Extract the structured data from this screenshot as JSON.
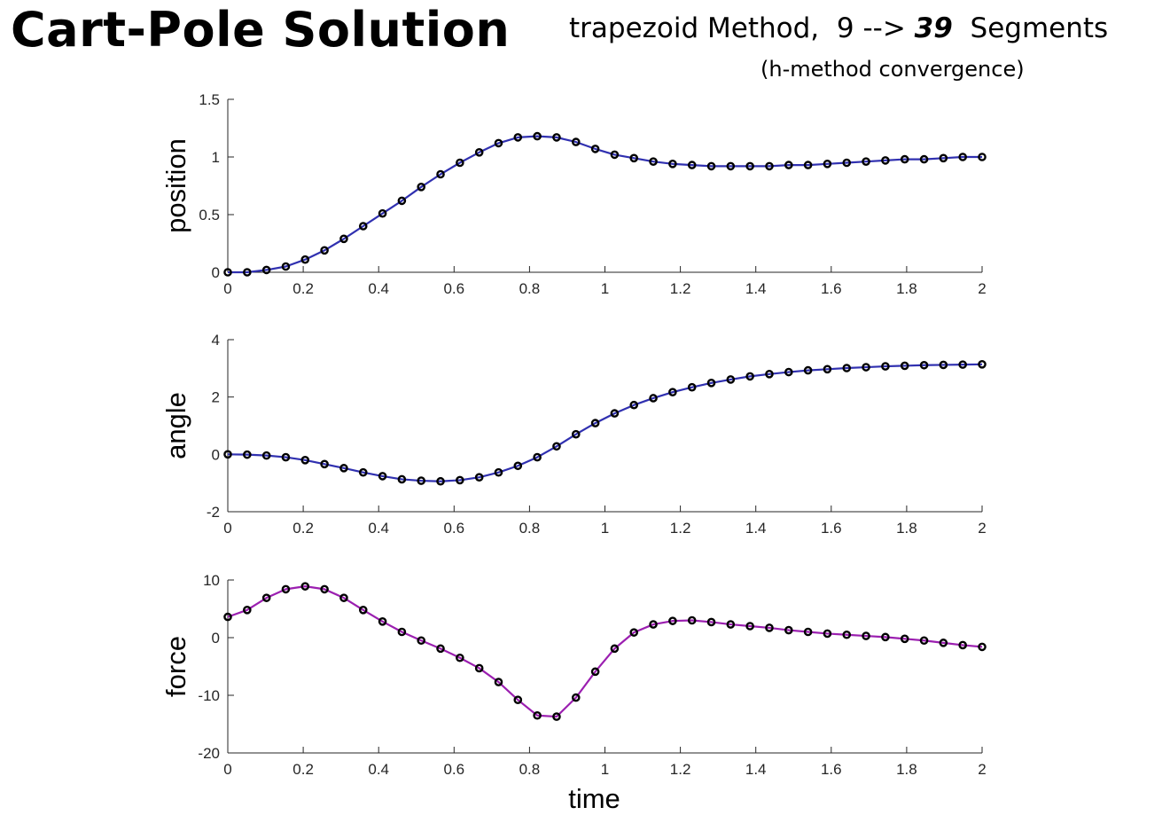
{
  "header": {
    "title": "Cart-Pole Solution",
    "method": "trapezoid Method,",
    "segments_from": "9 -->",
    "segments_to": "39",
    "segments_word": "Segments",
    "note": "(h-method convergence)"
  },
  "colors": {
    "state_line": "#3030b0",
    "force_line": "#9b1fb0",
    "marker": "#000000",
    "axis": "#262626"
  },
  "chart_data": [
    {
      "type": "line",
      "ylabel": "position",
      "xlabel": "",
      "xlim": [
        0,
        2
      ],
      "ylim": [
        0,
        1.5
      ],
      "xticks": [
        "0",
        "0.2",
        "0.4",
        "0.6",
        "0.8",
        "1",
        "1.2",
        "1.4",
        "1.6",
        "1.8",
        "2"
      ],
      "yticks": [
        "0",
        "0.5",
        "1",
        "1.5"
      ],
      "x": [
        0,
        0.0513,
        0.1026,
        0.1538,
        0.2051,
        0.2564,
        0.3077,
        0.359,
        0.4103,
        0.4615,
        0.5128,
        0.5641,
        0.6154,
        0.6667,
        0.7179,
        0.7692,
        0.8205,
        0.8718,
        0.9231,
        0.9744,
        1.0256,
        1.0769,
        1.1282,
        1.1795,
        1.2308,
        1.2821,
        1.3333,
        1.3846,
        1.4359,
        1.4872,
        1.5385,
        1.5897,
        1.641,
        1.6923,
        1.7436,
        1.7949,
        1.8462,
        1.8974,
        1.9487,
        2.0
      ],
      "series": [
        {
          "values": [
            0.0,
            0.0,
            0.02,
            0.05,
            0.11,
            0.19,
            0.29,
            0.4,
            0.51,
            0.62,
            0.74,
            0.85,
            0.95,
            1.04,
            1.12,
            1.17,
            1.18,
            1.17,
            1.13,
            1.07,
            1.02,
            0.99,
            0.96,
            0.94,
            0.93,
            0.92,
            0.92,
            0.92,
            0.92,
            0.93,
            0.93,
            0.94,
            0.95,
            0.96,
            0.97,
            0.98,
            0.98,
            0.99,
            1.0,
            1.0
          ]
        }
      ]
    },
    {
      "type": "line",
      "ylabel": "angle",
      "xlabel": "",
      "xlim": [
        0,
        2
      ],
      "ylim": [
        -2,
        4
      ],
      "xticks": [
        "0",
        "0.2",
        "0.4",
        "0.6",
        "0.8",
        "1",
        "1.2",
        "1.4",
        "1.6",
        "1.8",
        "2"
      ],
      "yticks": [
        "-2",
        "0",
        "2",
        "4"
      ],
      "x": [
        0,
        0.0513,
        0.1026,
        0.1538,
        0.2051,
        0.2564,
        0.3077,
        0.359,
        0.4103,
        0.4615,
        0.5128,
        0.5641,
        0.6154,
        0.6667,
        0.7179,
        0.7692,
        0.8205,
        0.8718,
        0.9231,
        0.9744,
        1.0256,
        1.0769,
        1.1282,
        1.1795,
        1.2308,
        1.2821,
        1.3333,
        1.3846,
        1.4359,
        1.4872,
        1.5385,
        1.5897,
        1.641,
        1.6923,
        1.7436,
        1.7949,
        1.8462,
        1.8974,
        1.9487,
        2.0
      ],
      "series": [
        {
          "values": [
            0.0,
            -0.01,
            -0.04,
            -0.1,
            -0.2,
            -0.34,
            -0.48,
            -0.63,
            -0.76,
            -0.87,
            -0.92,
            -0.94,
            -0.9,
            -0.8,
            -0.63,
            -0.4,
            -0.1,
            0.28,
            0.7,
            1.09,
            1.43,
            1.72,
            1.96,
            2.17,
            2.34,
            2.49,
            2.61,
            2.72,
            2.8,
            2.87,
            2.93,
            2.97,
            3.01,
            3.04,
            3.07,
            3.09,
            3.11,
            3.12,
            3.13,
            3.14
          ]
        }
      ]
    },
    {
      "type": "line",
      "ylabel": "force",
      "xlabel": "time",
      "xlim": [
        0,
        2
      ],
      "ylim": [
        -20,
        10
      ],
      "xticks": [
        "0",
        "0.2",
        "0.4",
        "0.6",
        "0.8",
        "1",
        "1.2",
        "1.4",
        "1.6",
        "1.8",
        "2"
      ],
      "yticks": [
        "-20",
        "-10",
        "0",
        "10"
      ],
      "x": [
        0,
        0.0513,
        0.1026,
        0.1538,
        0.2051,
        0.2564,
        0.3077,
        0.359,
        0.4103,
        0.4615,
        0.5128,
        0.5641,
        0.6154,
        0.6667,
        0.7179,
        0.7692,
        0.8205,
        0.8718,
        0.9231,
        0.9744,
        1.0256,
        1.0769,
        1.1282,
        1.1795,
        1.2308,
        1.2821,
        1.3333,
        1.3846,
        1.4359,
        1.4872,
        1.5385,
        1.5897,
        1.641,
        1.6923,
        1.7436,
        1.7949,
        1.8462,
        1.8974,
        1.9487,
        2.0
      ],
      "series": [
        {
          "values": [
            3.6,
            4.8,
            6.9,
            8.4,
            8.9,
            8.4,
            6.9,
            4.8,
            2.8,
            1.0,
            -0.5,
            -1.9,
            -3.5,
            -5.3,
            -7.7,
            -10.8,
            -13.5,
            -13.7,
            -10.4,
            -5.9,
            -1.9,
            0.9,
            2.3,
            2.9,
            3.0,
            2.7,
            2.3,
            2.0,
            1.7,
            1.3,
            1.0,
            0.7,
            0.5,
            0.3,
            0.1,
            -0.2,
            -0.5,
            -0.9,
            -1.3,
            -1.6
          ]
        }
      ]
    }
  ]
}
